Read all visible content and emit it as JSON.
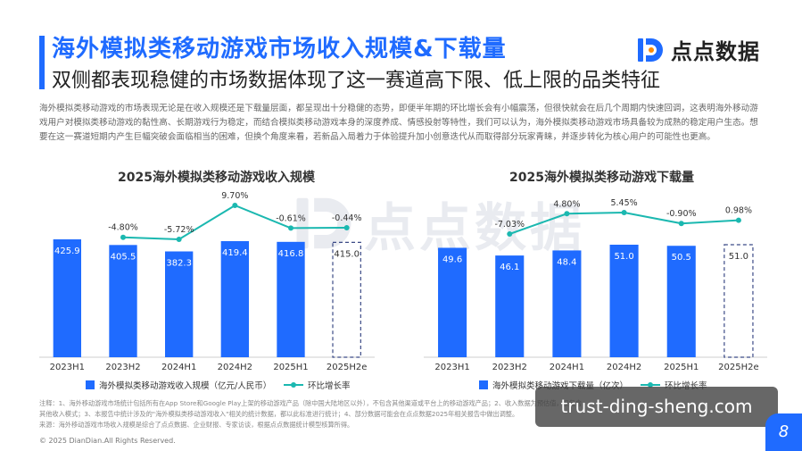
{
  "header": {
    "title": "海外模拟类移动游戏市场收入规模&下载量",
    "subtitle": "双侧都表现稳健的市场数据体现了这一赛道高下限、低上限的品类特征",
    "brand": "点点数据"
  },
  "paragraph": "海外模拟类移动游戏的市场表现无论是在收入规模还是下载量层面，都呈现出十分稳健的态势，即便半年期的环比增长会有小幅震荡，但很快就会在后几个周期内快速回调，这表明海外移动游戏用户对模拟类移动游戏的黏性高、长期游戏行为稳定，而结合模拟类移动游戏本身的深度养成、情感投射等特性，我们可以认为，海外模拟类移动游戏市场具备较为成熟的稳定用户生态。想要在这一赛道短期内产生巨幅突破会面临相当的困难，但换个角度来看，若新品入局着力于体验提升加小创意迭代从而取得部分玩家青睐，并逐步转化为核心用户的可能性也更高。",
  "colors": {
    "accent": "#1f6bff",
    "line": "#1bb8b0",
    "text": "#333333"
  },
  "chart_data": [
    {
      "type": "bar",
      "title": "2025海外模拟类移动游戏收入规模",
      "categories": [
        "2023H1",
        "2023H2",
        "2024H1",
        "2024H2",
        "2025H1",
        "2025H2e"
      ],
      "values": [
        425.9,
        405.5,
        382.3,
        419.4,
        416.8,
        415.0
      ],
      "value_labels": [
        "425.9",
        "405.5",
        "382.3",
        "419.4",
        "416.8",
        "415.0"
      ],
      "estimated": [
        false,
        false,
        false,
        false,
        false,
        true
      ],
      "growth_labels": [
        "",
        "-4.80%",
        "-5.72%",
        "9.70%",
        "-0.61%",
        "-0.44%"
      ],
      "growth": [
        null,
        -4.8,
        -5.72,
        9.7,
        -0.61,
        -0.44
      ],
      "legend": [
        "海外模拟类移动游戏收入规模（亿元/人民币）",
        "环比增长率"
      ]
    },
    {
      "type": "bar",
      "title": "2025海外模拟类移动游戏下载量",
      "categories": [
        "2023H1",
        "2023H2",
        "2024H1",
        "2024H2",
        "2025H1",
        "2025H2e"
      ],
      "values": [
        49.6,
        46.1,
        48.4,
        51.0,
        50.5,
        51.0
      ],
      "value_labels": [
        "49.6",
        "46.1",
        "48.4",
        "51.0",
        "50.5",
        "51.0"
      ],
      "estimated": [
        false,
        false,
        false,
        false,
        false,
        true
      ],
      "growth_labels": [
        "",
        "-7.03%",
        "4.80%",
        "5.45%",
        "-0.90%",
        "0.98%"
      ],
      "growth": [
        null,
        -7.03,
        4.8,
        5.45,
        -0.9,
        0.98
      ],
      "legend": [
        "海外模拟类移动游戏下载量（亿次）",
        "环比增长率"
      ]
    }
  ],
  "notes": [
    "注释：1、海外移动游戏市场统计包括所有在App Store和Google Play上架的移动游戏产品（除中国大陆地区以外），不包含其他渠道或平台上的移动游戏产品；2、收入数据为预估值，仅包含",
    "其他收入模式；3、本报告中统计涉及的\"海外模拟类移动游戏收入\"相关的统计数据，都以此标准进行统计；4、部分数据可能会在点点数据2025年相关报告中做出调整。",
    "来源：海外移动游戏市场收入规模是综合了点点数据、企业财报、专家访谈，根据点点数据统计模型核算所得。"
  ],
  "copyright": "© 2025 DianDian.All Rights Reserved.",
  "page_number": "8",
  "watermark": "trust-ding-sheng.com",
  "watermark_center": "点点数据"
}
